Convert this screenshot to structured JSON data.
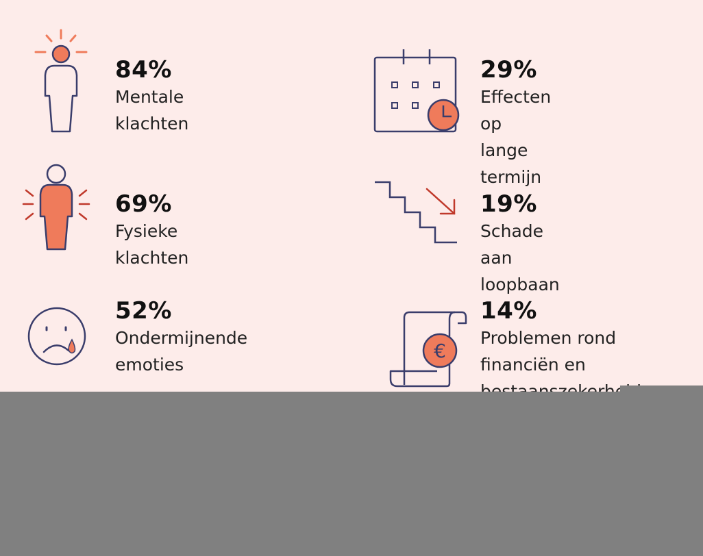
{
  "stats": [
    {
      "percent": "84%",
      "label_lines": [
        "Mentale klachten"
      ],
      "icon": "person-stressed-head-icon"
    },
    {
      "percent": "29%",
      "label_lines": [
        "Effecten op",
        "lange termijn"
      ],
      "icon": "calendar-clock-icon"
    },
    {
      "percent": "69%",
      "label_lines": [
        "Fysieke klachten"
      ],
      "icon": "person-body-pain-icon"
    },
    {
      "percent": "19%",
      "label_lines": [
        "Schade aan loopbaan"
      ],
      "icon": "stairs-down-icon"
    },
    {
      "percent": "52%",
      "label_lines": [
        "Ondermijnende",
        "emoties"
      ],
      "icon": "sad-face-tear-icon"
    },
    {
      "percent": "14%",
      "label_lines": [
        "Problemen rond",
        "financiën en",
        "bestaanszekerheid"
      ],
      "icon": "euro-scroll-icon"
    }
  ],
  "colors": {
    "background": "#fdecea",
    "accent": "#ef7b5b",
    "outline": "#3a3d6b",
    "arrow": "#c0392b",
    "overlay": "#808080"
  }
}
